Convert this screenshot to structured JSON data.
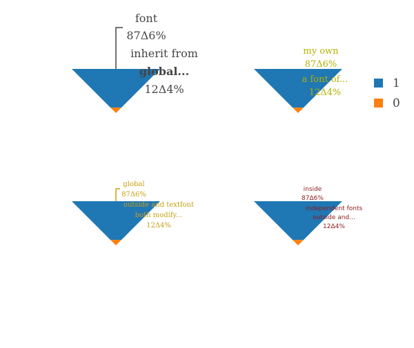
{
  "colors": {
    "series_1": "#1f77b4",
    "series_0": "#ff7f0e",
    "dark_gray": "#444444",
    "olive": "#b5b000",
    "gold": "#c8a012",
    "dark_red": "#8b1a1a"
  },
  "legend": {
    "placement": "right",
    "items": [
      {
        "label": "1",
        "color": "#1f77b4"
      },
      {
        "label": "0",
        "color": "#ff7f0e"
      }
    ]
  },
  "chart_data": [
    {
      "type": "funnelarea",
      "labels": [
        "1",
        "0"
      ],
      "values": [
        87.6,
        12.4
      ],
      "annotations": {
        "slice_1": [
          "font",
          "87Δ6%",
          "inherit from"
        ],
        "slice_0": [
          "global...",
          "12Δ4%"
        ]
      },
      "text_color": "#444444"
    },
    {
      "type": "funnelarea",
      "labels": [
        "1",
        "0"
      ],
      "values": [
        87.6,
        12.4
      ],
      "annotations": {
        "slice_1": [
          "my own",
          "87Δ6%"
        ],
        "slice_0": [
          "a font of...",
          "12Δ4%"
        ]
      },
      "text_color": "#b5b000"
    },
    {
      "type": "funnelarea",
      "labels": [
        "1",
        "0"
      ],
      "values": [
        87.6,
        12.4
      ],
      "annotations": {
        "slice_1": [
          "global",
          "87Δ6%",
          "outside and textfont"
        ],
        "slice_0": [
          "both modify...",
          "12Δ4%"
        ]
      },
      "text_color": "#c8a012"
    },
    {
      "type": "funnelarea",
      "labels": [
        "1",
        "0"
      ],
      "values": [
        87.6,
        12.4
      ],
      "annotations": {
        "slice_1": [
          "inside",
          "87Δ6%",
          "independent fonts"
        ],
        "slice_0": [
          "outside and...",
          "12Δ4%"
        ]
      },
      "text_color": "#8b1a1a"
    }
  ]
}
